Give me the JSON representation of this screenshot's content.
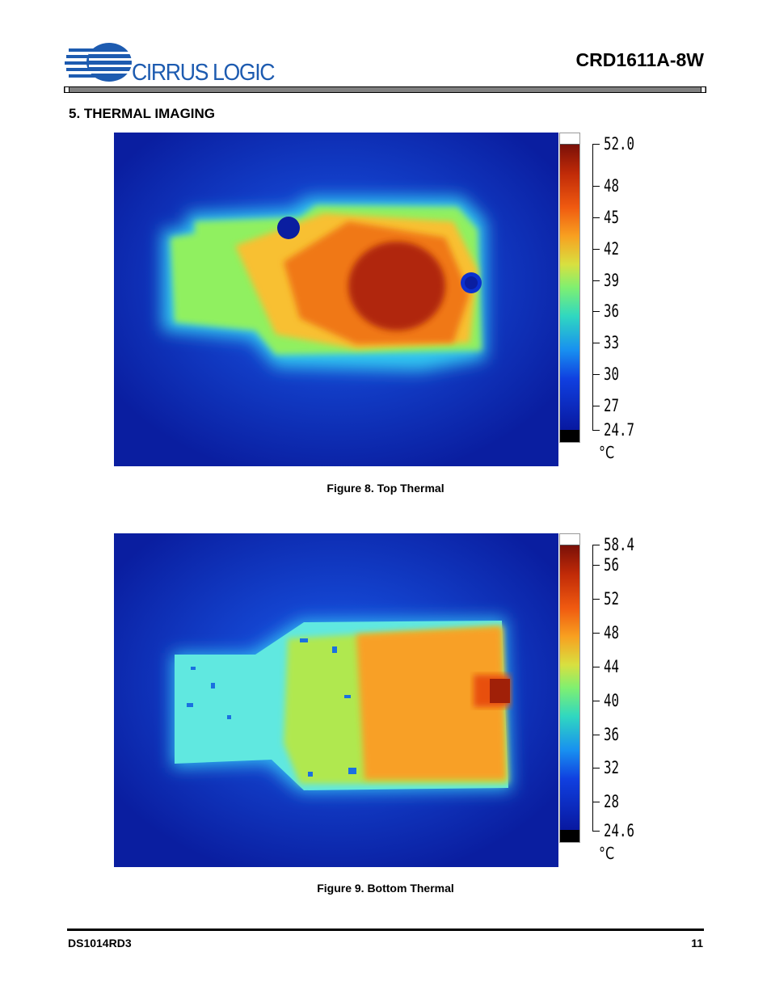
{
  "header": {
    "logo_text": "CIRRUS LOGIC",
    "doc_title": "CRD1611A-8W"
  },
  "section": {
    "title": "5.  THERMAL IMAGING"
  },
  "figures": [
    {
      "caption": "Figure 8.  Top Thermal",
      "scale_max": 52.0,
      "scale_min": 24.7,
      "max_label": "52.0",
      "min_label": "24.7",
      "ticks": [
        "48",
        "45",
        "42",
        "39",
        "36",
        "33",
        "30",
        "27"
      ],
      "unit": "°C"
    },
    {
      "caption": "Figure 9.  Bottom Thermal",
      "scale_max": 58.4,
      "scale_min": 24.6,
      "max_label": "58.4",
      "min_label": "24.6",
      "ticks": [
        "56",
        "52",
        "48",
        "44",
        "40",
        "36",
        "32",
        "28"
      ],
      "unit": "°C"
    }
  ],
  "footer": {
    "doc_id": "DS1014RD3",
    "page_number": "11"
  }
}
